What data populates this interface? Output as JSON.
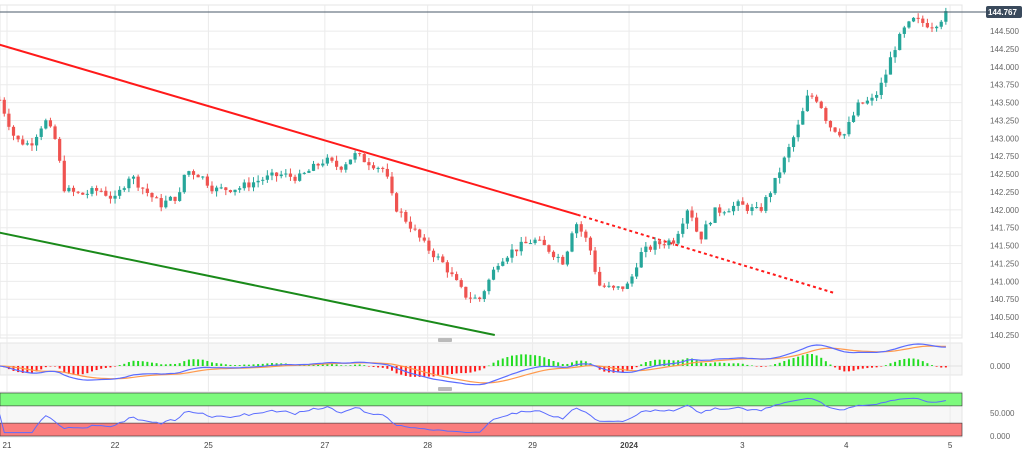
{
  "chart_data": {
    "type": "candlestick",
    "last_price": "144.767",
    "y_ticks": [
      "144.500",
      "144.250",
      "144.000",
      "143.750",
      "143.500",
      "143.250",
      "143.000",
      "142.750",
      "142.500",
      "142.250",
      "142.000",
      "141.750",
      "141.500",
      "141.250",
      "141.000",
      "140.750",
      "140.500",
      "140.250"
    ],
    "ylim": [
      140.22,
      144.85
    ],
    "x_ticks": [
      {
        "label": "21",
        "x": 0
      },
      {
        "label": "22",
        "x": 1.03
      },
      {
        "label": "25",
        "x": 1.92
      },
      {
        "label": "27",
        "x": 3.03
      },
      {
        "label": "28",
        "x": 4.01
      },
      {
        "label": "29",
        "x": 5.01
      },
      {
        "label": "2024",
        "x": 5.93,
        "bold": true
      },
      {
        "label": "3",
        "x": 7.01
      },
      {
        "label": "4",
        "x": 8.0
      },
      {
        "label": "5",
        "x": 8.99
      }
    ],
    "close_path": [
      [
        -0.07,
        143.54
      ],
      [
        0.08,
        142.98
      ],
      [
        0.22,
        142.91
      ],
      [
        0.36,
        143.26
      ],
      [
        0.46,
        142.98
      ],
      [
        0.55,
        142.28
      ],
      [
        0.7,
        142.21
      ],
      [
        0.89,
        142.28
      ],
      [
        1.03,
        142.14
      ],
      [
        1.17,
        142.49
      ],
      [
        1.31,
        142.28
      ],
      [
        1.46,
        142.07
      ],
      [
        1.65,
        142.21
      ],
      [
        1.7,
        142.56
      ],
      [
        1.84,
        142.49
      ],
      [
        1.98,
        142.28
      ],
      [
        2.22,
        142.31
      ],
      [
        2.41,
        142.42
      ],
      [
        2.6,
        142.49
      ],
      [
        2.79,
        142.45
      ],
      [
        3.03,
        142.7
      ],
      [
        3.17,
        142.59
      ],
      [
        3.31,
        142.77
      ],
      [
        3.6,
        142.56
      ],
      [
        3.69,
        142.07
      ],
      [
        3.84,
        141.79
      ],
      [
        3.98,
        141.51
      ],
      [
        4.17,
        141.23
      ],
      [
        4.36,
        140.81
      ],
      [
        4.5,
        140.74
      ],
      [
        4.62,
        141.09
      ],
      [
        4.69,
        141.3
      ],
      [
        4.83,
        141.44
      ],
      [
        5.02,
        141.58
      ],
      [
        5.17,
        141.44
      ],
      [
        5.31,
        141.27
      ],
      [
        5.41,
        141.86
      ],
      [
        5.55,
        141.51
      ],
      [
        5.64,
        140.95
      ],
      [
        5.79,
        140.88
      ],
      [
        5.93,
        140.95
      ],
      [
        6.03,
        141.37
      ],
      [
        6.17,
        141.51
      ],
      [
        6.36,
        141.58
      ],
      [
        6.5,
        142.07
      ],
      [
        6.6,
        141.58
      ],
      [
        6.74,
        141.97
      ],
      [
        6.98,
        142.07
      ],
      [
        7.17,
        141.97
      ],
      [
        7.31,
        142.35
      ],
      [
        7.45,
        142.84
      ],
      [
        7.55,
        143.19
      ],
      [
        7.64,
        143.61
      ],
      [
        7.74,
        143.54
      ],
      [
        7.83,
        143.19
      ],
      [
        7.98,
        143.05
      ],
      [
        8.12,
        143.47
      ],
      [
        8.26,
        143.54
      ],
      [
        8.36,
        143.82
      ],
      [
        8.45,
        144.24
      ],
      [
        8.55,
        144.51
      ],
      [
        8.64,
        144.65
      ],
      [
        8.83,
        144.58
      ],
      [
        8.98,
        144.77
      ]
    ],
    "trend_lines": [
      {
        "color": "#ff1a1a",
        "style": "solid",
        "from": [
          -0.07,
          144.31
        ],
        "to": [
          5.44,
          141.93
        ]
      },
      {
        "color": "#ff1a1a",
        "style": "dotted",
        "from": [
          5.44,
          141.93
        ],
        "to": [
          7.88,
          140.84
        ]
      },
      {
        "color": "#1a8a1a",
        "style": "solid",
        "from": [
          -0.07,
          141.68
        ],
        "to": [
          4.65,
          140.25
        ]
      }
    ],
    "macd": {
      "zero_label": "0.000",
      "colors": {
        "macd": "#5b6cff",
        "signal": "#ff9a4d",
        "hist_pos": "#22dd22",
        "hist_neg": "#ff1a1a"
      }
    },
    "rsi": {
      "labels": [
        "50.000",
        "0.000"
      ],
      "overbought": 70,
      "oversold": 30,
      "colors": {
        "line": "#5b6cff",
        "overbought_zone": "#7dfa7d",
        "oversold_zone": "#fa7d7d"
      }
    },
    "colors": {
      "up": "#26a69a",
      "down": "#ef5350",
      "grid": "#ebebeb",
      "price_tag": "#3a4a5c"
    }
  }
}
